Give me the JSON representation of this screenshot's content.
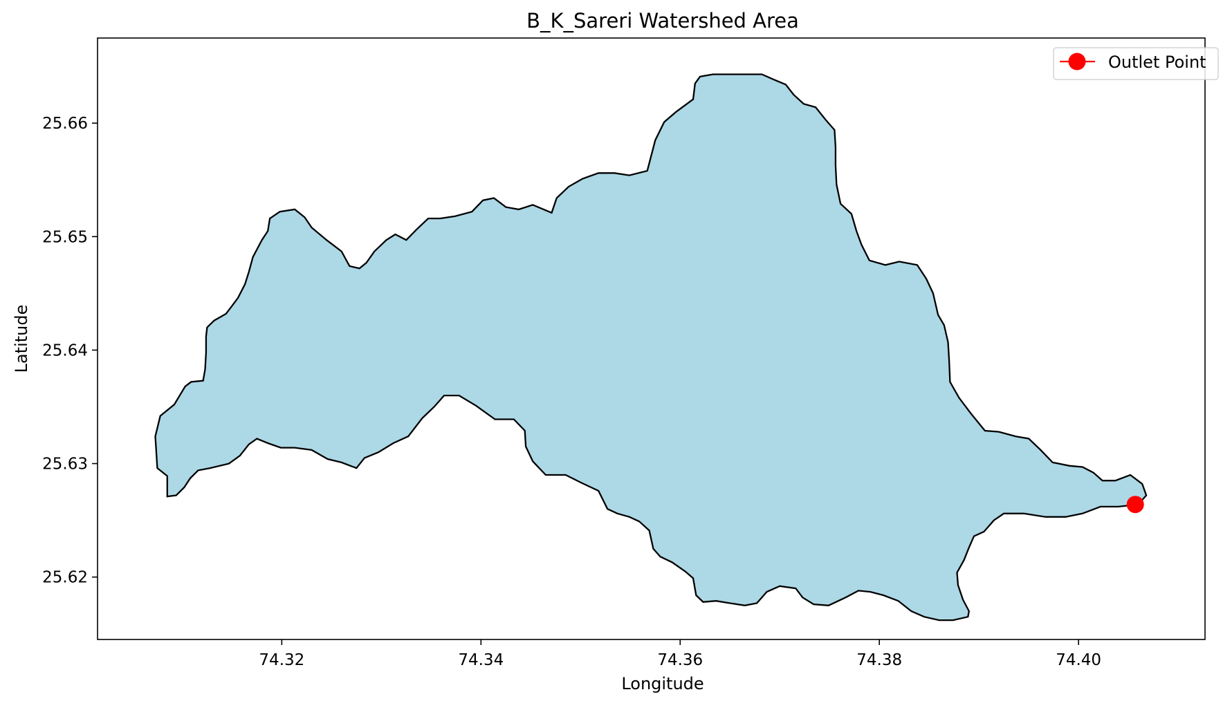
{
  "chart_data": {
    "type": "map",
    "title": "B_K_Sareri Watershed Area",
    "xlabel": "Longitude",
    "ylabel": "Latitude",
    "xlim": [
      74.3015,
      74.4127
    ],
    "ylim": [
      25.6145,
      25.6675
    ],
    "xticks": [
      74.32,
      74.34,
      74.36,
      74.38,
      74.4
    ],
    "yticks": [
      25.62,
      25.63,
      25.64,
      25.65,
      25.66
    ],
    "grid": false,
    "legend": {
      "position": "top-right",
      "entries": [
        {
          "label": "Outlet Point"
        }
      ]
    },
    "colors": {
      "watershed_fill": "#add8e6",
      "watershed_edge": "#000000",
      "outlet": "#ff0000"
    },
    "outlet": {
      "lon": 74.4057,
      "lat": 25.6264
    },
    "watershed_boundary": [
      [
        74.3075,
        25.6296
      ],
      [
        74.3073,
        25.6324
      ],
      [
        74.3078,
        25.6342
      ],
      [
        74.3092,
        25.6352
      ],
      [
        74.3103,
        25.6368
      ],
      [
        74.3109,
        25.6372
      ],
      [
        74.3121,
        25.6373
      ],
      [
        74.3123,
        25.6383
      ],
      [
        74.3124,
        25.6398
      ],
      [
        74.3124,
        25.6412
      ],
      [
        74.3125,
        25.642
      ],
      [
        74.3132,
        25.6426
      ],
      [
        74.3144,
        25.6432
      ],
      [
        74.315,
        25.6439
      ],
      [
        74.3156,
        25.6446
      ],
      [
        74.3163,
        25.6458
      ],
      [
        74.3167,
        25.6469
      ],
      [
        74.3171,
        25.6482
      ],
      [
        74.318,
        25.6497
      ],
      [
        74.3186,
        25.6505
      ],
      [
        74.3188,
        25.6516
      ],
      [
        74.3198,
        25.6522
      ],
      [
        74.3213,
        25.6524
      ],
      [
        74.3223,
        25.6517
      ],
      [
        74.323,
        25.6508
      ],
      [
        74.3245,
        25.6497
      ],
      [
        74.326,
        25.6487
      ],
      [
        74.3268,
        25.6474
      ],
      [
        74.3278,
        25.6472
      ],
      [
        74.3285,
        25.6477
      ],
      [
        74.3293,
        25.6487
      ],
      [
        74.3305,
        25.6497
      ],
      [
        74.3314,
        25.6502
      ],
      [
        74.3325,
        25.6497
      ],
      [
        74.3335,
        25.6506
      ],
      [
        74.3347,
        25.6516
      ],
      [
        74.3359,
        25.6516
      ],
      [
        74.3374,
        25.6518
      ],
      [
        74.3391,
        25.6522
      ],
      [
        74.3402,
        25.6532
      ],
      [
        74.3413,
        25.6534
      ],
      [
        74.3425,
        25.6526
      ],
      [
        74.3438,
        25.6524
      ],
      [
        74.3452,
        25.6528
      ],
      [
        74.3471,
        25.6521
      ],
      [
        74.3476,
        25.6534
      ],
      [
        74.3488,
        25.6544
      ],
      [
        74.3502,
        25.6551
      ],
      [
        74.3518,
        25.6556
      ],
      [
        74.3534,
        25.6556
      ],
      [
        74.3549,
        25.6554
      ],
      [
        74.3567,
        25.6558
      ],
      [
        74.3575,
        25.6585
      ],
      [
        74.3584,
        25.6601
      ],
      [
        74.3596,
        25.661
      ],
      [
        74.3613,
        25.6621
      ],
      [
        74.3615,
        25.6635
      ],
      [
        74.362,
        25.6641
      ],
      [
        74.3633,
        25.6643
      ],
      [
        74.365,
        25.6643
      ],
      [
        74.3665,
        25.6643
      ],
      [
        74.3682,
        25.6643
      ],
      [
        74.3695,
        25.6638
      ],
      [
        74.3706,
        25.6634
      ],
      [
        74.3714,
        25.6625
      ],
      [
        74.3724,
        25.6617
      ],
      [
        74.3736,
        25.6614
      ],
      [
        74.3746,
        25.6603
      ],
      [
        74.3755,
        25.6594
      ],
      [
        74.3756,
        25.6579
      ],
      [
        74.3756,
        25.6563
      ],
      [
        74.3757,
        25.6546
      ],
      [
        74.3761,
        25.6529
      ],
      [
        74.3772,
        25.652
      ],
      [
        74.3777,
        25.6505
      ],
      [
        74.3782,
        25.6493
      ],
      [
        74.379,
        25.6479
      ],
      [
        74.3806,
        25.6475
      ],
      [
        74.382,
        25.6478
      ],
      [
        74.3838,
        25.6475
      ],
      [
        74.3847,
        25.6463
      ],
      [
        74.3854,
        25.645
      ],
      [
        74.3859,
        25.6431
      ],
      [
        74.3865,
        25.6422
      ],
      [
        74.3869,
        25.6407
      ],
      [
        74.387,
        25.6392
      ],
      [
        74.3871,
        25.6372
      ],
      [
        74.388,
        25.6358
      ],
      [
        74.3892,
        25.6344
      ],
      [
        74.3906,
        25.6329
      ],
      [
        74.392,
        25.6328
      ],
      [
        74.3937,
        25.6324
      ],
      [
        74.395,
        25.6322
      ],
      [
        74.3962,
        25.6312
      ],
      [
        74.3974,
        25.6301
      ],
      [
        74.3991,
        25.6298
      ],
      [
        74.4004,
        25.6297
      ],
      [
        74.4015,
        25.6292
      ],
      [
        74.4024,
        25.6285
      ],
      [
        74.4037,
        25.6285
      ],
      [
        74.4052,
        25.629
      ],
      [
        74.4064,
        25.6282
      ],
      [
        74.4068,
        25.6272
      ],
      [
        74.406,
        25.6264
      ],
      [
        74.404,
        25.6262
      ],
      [
        74.4022,
        25.6262
      ],
      [
        74.4004,
        25.6256
      ],
      [
        74.3987,
        25.6253
      ],
      [
        74.3967,
        25.6253
      ],
      [
        74.3945,
        25.6256
      ],
      [
        74.3925,
        25.6256
      ],
      [
        74.3915,
        25.625
      ],
      [
        74.3905,
        25.624
      ],
      [
        74.3895,
        25.6236
      ],
      [
        74.389,
        25.6226
      ],
      [
        74.3885,
        25.6215
      ],
      [
        74.3878,
        25.6204
      ],
      [
        74.3879,
        25.6193
      ],
      [
        74.3884,
        25.618
      ],
      [
        74.389,
        25.617
      ],
      [
        74.3889,
        25.6165
      ],
      [
        74.3874,
        25.6162
      ],
      [
        74.386,
        25.6162
      ],
      [
        74.3845,
        25.6165
      ],
      [
        74.3832,
        25.617
      ],
      [
        74.3819,
        25.6179
      ],
      [
        74.3804,
        25.6184
      ],
      [
        74.3791,
        25.6187
      ],
      [
        74.3779,
        25.6188
      ],
      [
        74.3766,
        25.6182
      ],
      [
        74.3749,
        25.6175
      ],
      [
        74.3734,
        25.6176
      ],
      [
        74.3723,
        25.6182
      ],
      [
        74.3716,
        25.619
      ],
      [
        74.37,
        25.6192
      ],
      [
        74.3687,
        25.6187
      ],
      [
        74.3677,
        25.6177
      ],
      [
        74.3665,
        25.6175
      ],
      [
        74.365,
        25.6177
      ],
      [
        74.3636,
        25.6179
      ],
      [
        74.3623,
        25.6178
      ],
      [
        74.3616,
        25.6184
      ],
      [
        74.3613,
        25.6199
      ],
      [
        74.3605,
        25.6205
      ],
      [
        74.3592,
        25.6213
      ],
      [
        74.358,
        25.6218
      ],
      [
        74.3573,
        25.6225
      ],
      [
        74.3569,
        25.6241
      ],
      [
        74.3559,
        25.6249
      ],
      [
        74.3549,
        25.6253
      ],
      [
        74.3537,
        25.6256
      ],
      [
        74.3527,
        25.626
      ],
      [
        74.3518,
        25.6276
      ],
      [
        74.3501,
        25.6283
      ],
      [
        74.3485,
        25.629
      ],
      [
        74.3465,
        25.629
      ],
      [
        74.3452,
        25.6302
      ],
      [
        74.3445,
        25.6315
      ],
      [
        74.3444,
        25.6329
      ],
      [
        74.3433,
        25.6339
      ],
      [
        74.3414,
        25.6339
      ],
      [
        74.3395,
        25.6351
      ],
      [
        74.3378,
        25.636
      ],
      [
        74.3363,
        25.636
      ],
      [
        74.3353,
        25.635
      ],
      [
        74.3341,
        25.634
      ],
      [
        74.3327,
        25.6324
      ],
      [
        74.3312,
        25.6318
      ],
      [
        74.3297,
        25.631
      ],
      [
        74.3283,
        25.6305
      ],
      [
        74.3275,
        25.6296
      ],
      [
        74.326,
        25.6301
      ],
      [
        74.3246,
        25.6304
      ],
      [
        74.323,
        25.6312
      ],
      [
        74.3213,
        25.6314
      ],
      [
        74.3199,
        25.6314
      ],
      [
        74.3186,
        25.6318
      ],
      [
        74.3175,
        25.6322
      ],
      [
        74.3167,
        25.6317
      ],
      [
        74.3158,
        25.6307
      ],
      [
        74.3147,
        25.63
      ],
      [
        74.3128,
        25.6296
      ],
      [
        74.3116,
        25.6294
      ],
      [
        74.3108,
        25.6287
      ],
      [
        74.3102,
        25.6279
      ],
      [
        74.3094,
        25.6272
      ],
      [
        74.3085,
        25.6271
      ],
      [
        74.3085,
        25.6289
      ],
      [
        74.3075,
        25.6296
      ]
    ]
  }
}
